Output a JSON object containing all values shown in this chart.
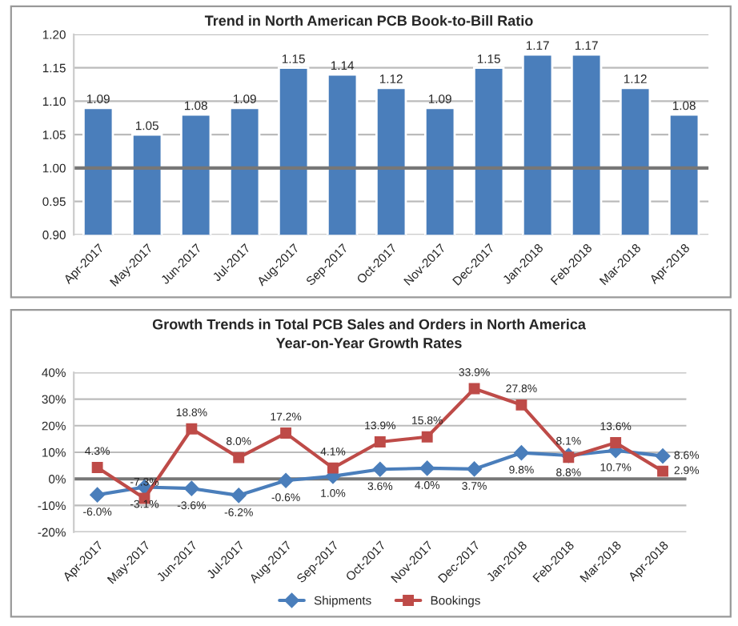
{
  "chart_data": [
    {
      "type": "bar",
      "title": "Trend in North American PCB Book-to-Bill Ratio",
      "categories": [
        "Apr-2017",
        "May-2017",
        "Jun-2017",
        "Jul-2017",
        "Aug-2017",
        "Sep-2017",
        "Oct-2017",
        "Nov-2017",
        "Dec-2017",
        "Jan-2018",
        "Feb-2018",
        "Mar-2018",
        "Apr-2018"
      ],
      "values": [
        1.09,
        1.05,
        1.08,
        1.09,
        1.15,
        1.14,
        1.12,
        1.09,
        1.15,
        1.17,
        1.17,
        1.12,
        1.08
      ],
      "value_labels": [
        "1.09",
        "1.05",
        "1.08",
        "1.09",
        "1.15",
        "1.14",
        "1.12",
        "1.09",
        "1.15",
        "1.17",
        "1.17",
        "1.12",
        "1.08"
      ],
      "color": "#4a7ebb",
      "ylim": [
        0.9,
        1.2
      ],
      "yticks": [
        {
          "value": 0.9,
          "label": "0.90"
        },
        {
          "value": 0.95,
          "label": "0.95"
        },
        {
          "value": 1.0,
          "label": "1.00"
        },
        {
          "value": 1.05,
          "label": "1.05"
        },
        {
          "value": 1.1,
          "label": "1.10"
        },
        {
          "value": 1.15,
          "label": "1.15"
        },
        {
          "value": 1.2,
          "label": "1.20"
        }
      ],
      "grid": "y",
      "ref_lines": [
        {
          "axis": "y",
          "value": 1.0,
          "color": "#777777"
        }
      ]
    },
    {
      "type": "line",
      "title": "Growth Trends in Total PCB Sales and Orders in North America",
      "subtitle": "Year-on-Year Growth Rates",
      "categories": [
        "Apr-2017",
        "May-2017",
        "Jun-2017",
        "Jul-2017",
        "Aug-2017",
        "Sep-2017",
        "Oct-2017",
        "Nov-2017",
        "Dec-2017",
        "Jan-2018",
        "Feb-2018",
        "Mar-2018",
        "Apr-2018"
      ],
      "series": [
        {
          "name": "Shipments",
          "color": "#4a7ebb",
          "marker": "diamond",
          "values": [
            -6.0,
            -3.1,
            -3.6,
            -6.2,
            -0.6,
            1.0,
            3.6,
            4.0,
            3.7,
            9.8,
            8.8,
            10.7,
            8.6
          ],
          "value_labels": [
            "-6.0%",
            "-3.1%",
            "-3.6%",
            "-6.2%",
            "-0.6%",
            "1.0%",
            "3.6%",
            "4.0%",
            "3.7%",
            "9.8%",
            "8.8%",
            "10.7%",
            "8.6%"
          ]
        },
        {
          "name": "Bookings",
          "color": "#be4b48",
          "marker": "square",
          "values": [
            4.3,
            -7.3,
            18.8,
            8.0,
            17.2,
            4.1,
            13.9,
            15.8,
            33.9,
            27.8,
            8.1,
            13.6,
            2.9
          ],
          "value_labels": [
            "4.3%",
            "-7.3%",
            "18.8%",
            "8.0%",
            "17.2%",
            "4.1%",
            "13.9%",
            "15.8%",
            "33.9%",
            "27.8%",
            "8.1%",
            "13.6%",
            "2.9%"
          ]
        }
      ],
      "ylim": [
        -20,
        40
      ],
      "yticks": [
        {
          "value": -20,
          "label": "-20%"
        },
        {
          "value": -10,
          "label": "-10%"
        },
        {
          "value": 0,
          "label": "0%"
        },
        {
          "value": 10,
          "label": "10%"
        },
        {
          "value": 20,
          "label": "20%"
        },
        {
          "value": 30,
          "label": "30%"
        },
        {
          "value": 40,
          "label": "40%"
        }
      ],
      "grid": "y",
      "legend": "bottom",
      "ref_lines": [
        {
          "axis": "y",
          "value": 0,
          "color": "#777777"
        }
      ]
    }
  ]
}
